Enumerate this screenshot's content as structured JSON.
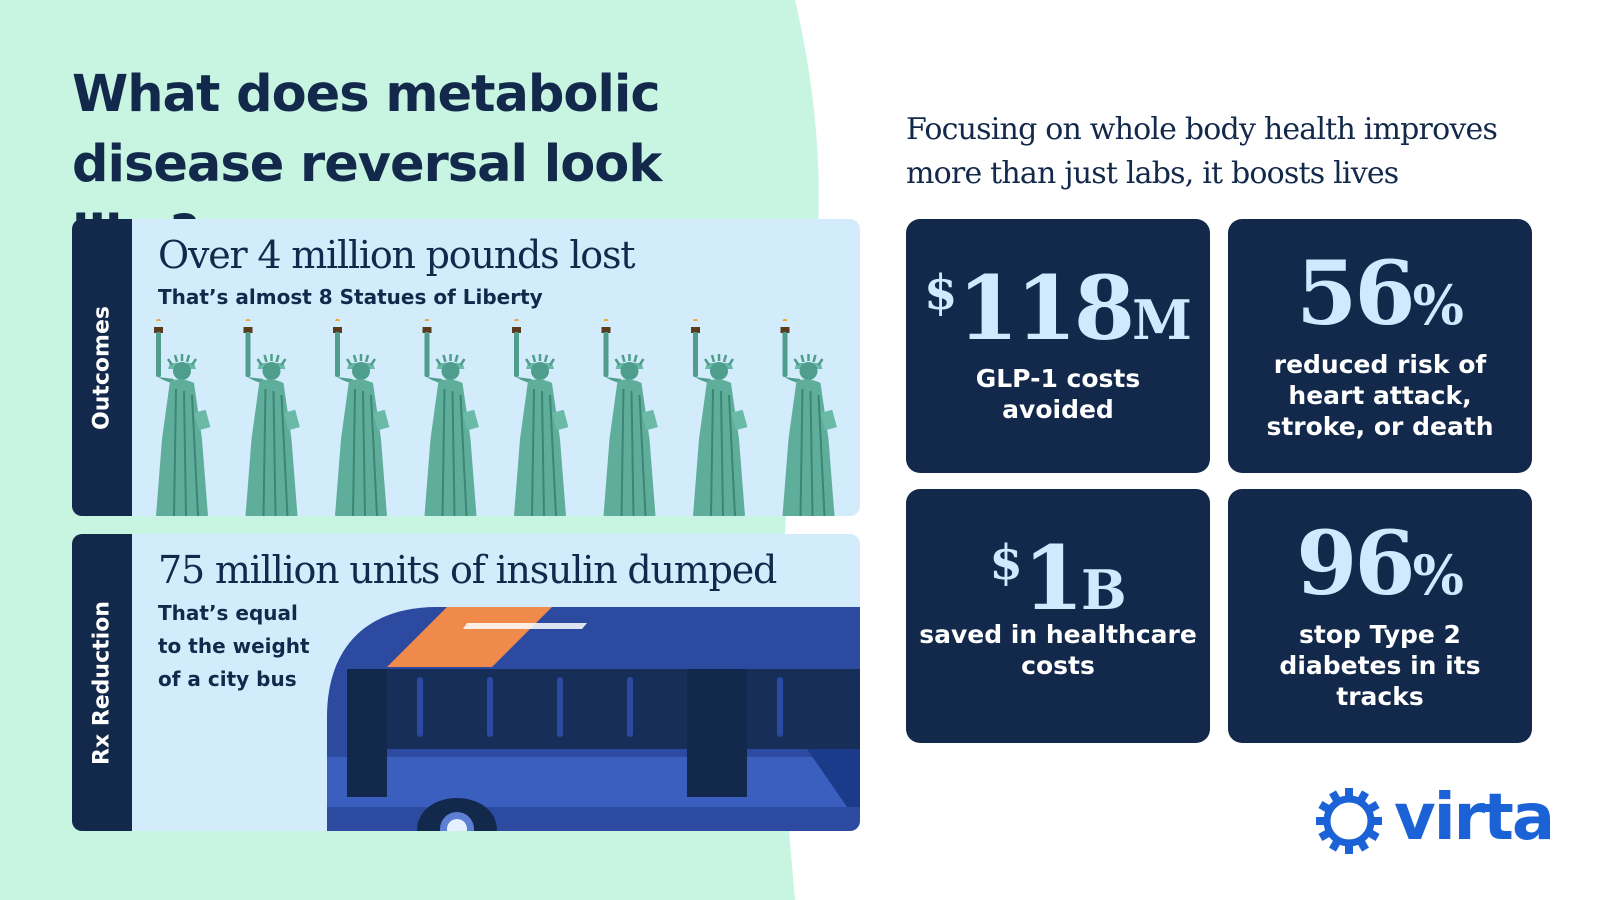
{
  "heading": "What does metabolic disease reversal look like?",
  "subheading": "Focusing on whole body health improves more than just labs, it boosts lives",
  "outcomes": {
    "side_label": "Outcomes",
    "headline": "Over 4 million pounds lost",
    "note": "That’s almost 8 Statues of Liberty",
    "statue_count": 8
  },
  "rx": {
    "side_label": "Rx Reduction",
    "headline": "75 million units of insulin dumped",
    "note": "That’s equal to the weight of a city bus"
  },
  "stats": [
    {
      "prefix": "$",
      "value": "118",
      "suffix": "M",
      "label": "GLP-1 costs avoided"
    },
    {
      "prefix": "",
      "value": "56",
      "suffix": "%",
      "label": "reduced risk of heart attack, stroke, or death"
    },
    {
      "prefix": "$",
      "value": "1",
      "suffix": "B",
      "label": "saved in healthcare costs"
    },
    {
      "prefix": "",
      "value": "96",
      "suffix": "%",
      "label": "stop Type 2 diabetes in its tracks"
    }
  ],
  "brand": {
    "name": "virta",
    "icon": "sun-ring-icon",
    "colors": {
      "navy": "#13294b",
      "mint": "#c8f5e2",
      "light_blue": "#d3ecfb",
      "stat_blue": "#cfe9ff",
      "brand_blue": "#1a62d6",
      "orange": "#f08a4b"
    }
  }
}
